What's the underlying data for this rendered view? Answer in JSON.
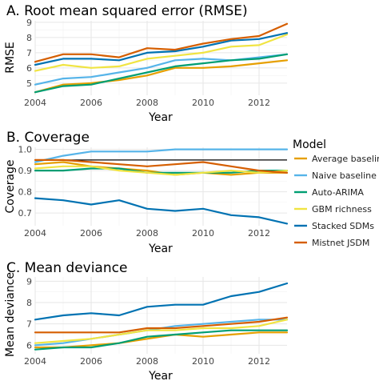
{
  "colors": {
    "average_baseline": "#E69F00",
    "naive_baseline": "#56B4E9",
    "auto_arima": "#009E73",
    "gbm_richness": "#F0E442",
    "stacked_sdms": "#0072B2",
    "mistnet_jsdm": "#D55E00",
    "grid": "#e6e6e6",
    "reference_line": "#000000"
  },
  "legend": {
    "title": "Model",
    "placement": "right",
    "entries": [
      "Average baseline",
      "Naive baseline",
      "Auto-ARIMA",
      "GBM richness",
      "Stacked SDMs",
      "Mistnet JSDM"
    ]
  },
  "chart_data": [
    {
      "type": "line",
      "title": "A. Root mean squared error (RMSE)",
      "xlabel": "Year",
      "ylabel": "RMSE",
      "xlim": [
        2004,
        2013
      ],
      "ylim": [
        4.2,
        9.1
      ],
      "xticks": [
        2004,
        2006,
        2008,
        2010,
        2012
      ],
      "yticks": [
        5,
        6,
        7,
        8,
        9
      ],
      "grid": true,
      "x": [
        2004,
        2005,
        2006,
        2007,
        2008,
        2009,
        2010,
        2011,
        2012,
        2013
      ],
      "series": [
        {
          "name": "Average baseline",
          "values": [
            4.4,
            4.9,
            5.0,
            5.2,
            5.5,
            6.0,
            6.0,
            6.1,
            6.3,
            6.5
          ]
        },
        {
          "name": "Naive baseline",
          "values": [
            4.9,
            5.3,
            5.4,
            5.7,
            6.0,
            6.5,
            6.6,
            6.5,
            6.7,
            6.9
          ]
        },
        {
          "name": "Auto-ARIMA",
          "values": [
            4.4,
            4.8,
            4.9,
            5.3,
            5.7,
            6.1,
            6.3,
            6.5,
            6.6,
            6.9
          ]
        },
        {
          "name": "GBM richness",
          "values": [
            5.8,
            6.2,
            6.0,
            6.1,
            6.6,
            6.8,
            7.0,
            7.4,
            7.5,
            8.2
          ]
        },
        {
          "name": "Stacked SDMs",
          "values": [
            6.2,
            6.6,
            6.6,
            6.5,
            7.0,
            7.1,
            7.4,
            7.8,
            7.9,
            8.3
          ]
        },
        {
          "name": "Mistnet JSDM",
          "values": [
            6.4,
            6.9,
            6.9,
            6.7,
            7.3,
            7.2,
            7.6,
            7.9,
            8.1,
            8.9
          ]
        }
      ]
    },
    {
      "type": "line",
      "title": "B. Coverage",
      "xlabel": "Year",
      "ylabel": "Coverage",
      "xlim": [
        2004,
        2013
      ],
      "ylim": [
        0.64,
        1.01
      ],
      "xticks": [
        2004,
        2006,
        2008,
        2010,
        2012
      ],
      "yticks": [
        0.7,
        0.8,
        0.9,
        1.0
      ],
      "ytick_labels": [
        "0.7",
        "0.8",
        "0.9",
        "1.0"
      ],
      "grid": true,
      "reference_line": 0.95,
      "x": [
        2004,
        2005,
        2006,
        2007,
        2008,
        2009,
        2010,
        2011,
        2012,
        2013
      ],
      "series": [
        {
          "name": "Average baseline",
          "values": [
            0.93,
            0.94,
            0.92,
            0.91,
            0.9,
            0.88,
            0.89,
            0.88,
            0.89,
            0.89
          ]
        },
        {
          "name": "Naive baseline",
          "values": [
            0.94,
            0.97,
            0.99,
            0.99,
            0.99,
            1.0,
            1.0,
            1.0,
            1.0,
            1.0
          ]
        },
        {
          "name": "Auto-ARIMA",
          "values": [
            0.9,
            0.9,
            0.91,
            0.91,
            0.89,
            0.89,
            0.89,
            0.89,
            0.9,
            0.9
          ]
        },
        {
          "name": "GBM richness",
          "values": [
            0.91,
            0.92,
            0.92,
            0.9,
            0.89,
            0.88,
            0.89,
            0.9,
            0.89,
            0.9
          ]
        },
        {
          "name": "Stacked SDMs",
          "values": [
            0.77,
            0.76,
            0.74,
            0.76,
            0.72,
            0.71,
            0.72,
            0.69,
            0.68,
            0.65
          ]
        },
        {
          "name": "Mistnet JSDM",
          "values": [
            0.95,
            0.95,
            0.94,
            0.93,
            0.92,
            0.93,
            0.94,
            0.92,
            0.9,
            0.89
          ]
        }
      ]
    },
    {
      "type": "line",
      "title": "C. Mean deviance",
      "xlabel": "Year",
      "ylabel": "Mean deviance",
      "xlim": [
        2004,
        2013
      ],
      "ylim": [
        5.6,
        9.2
      ],
      "xticks": [
        2004,
        2006,
        2008,
        2010,
        2012
      ],
      "yticks": [
        6,
        7,
        8,
        9
      ],
      "grid": true,
      "x": [
        2004,
        2005,
        2006,
        2007,
        2008,
        2009,
        2010,
        2011,
        2012,
        2013
      ],
      "series": [
        {
          "name": "Average baseline",
          "values": [
            5.9,
            5.9,
            6.0,
            6.1,
            6.3,
            6.5,
            6.4,
            6.5,
            6.6,
            6.6
          ]
        },
        {
          "name": "Naive baseline",
          "values": [
            6.0,
            6.1,
            6.3,
            6.5,
            6.7,
            6.9,
            7.0,
            7.1,
            7.2,
            7.2
          ]
        },
        {
          "name": "Auto-ARIMA",
          "values": [
            5.8,
            5.9,
            5.9,
            6.1,
            6.4,
            6.5,
            6.6,
            6.7,
            6.7,
            6.7
          ]
        },
        {
          "name": "GBM richness",
          "values": [
            6.1,
            6.2,
            6.3,
            6.5,
            6.7,
            6.7,
            6.8,
            6.8,
            6.9,
            7.2
          ]
        },
        {
          "name": "Stacked SDMs",
          "values": [
            7.2,
            7.4,
            7.5,
            7.4,
            7.8,
            7.9,
            7.9,
            8.3,
            8.5,
            8.9
          ]
        },
        {
          "name": "Mistnet JSDM",
          "values": [
            6.6,
            6.6,
            6.6,
            6.6,
            6.8,
            6.8,
            6.9,
            7.0,
            7.1,
            7.3
          ]
        }
      ]
    }
  ]
}
